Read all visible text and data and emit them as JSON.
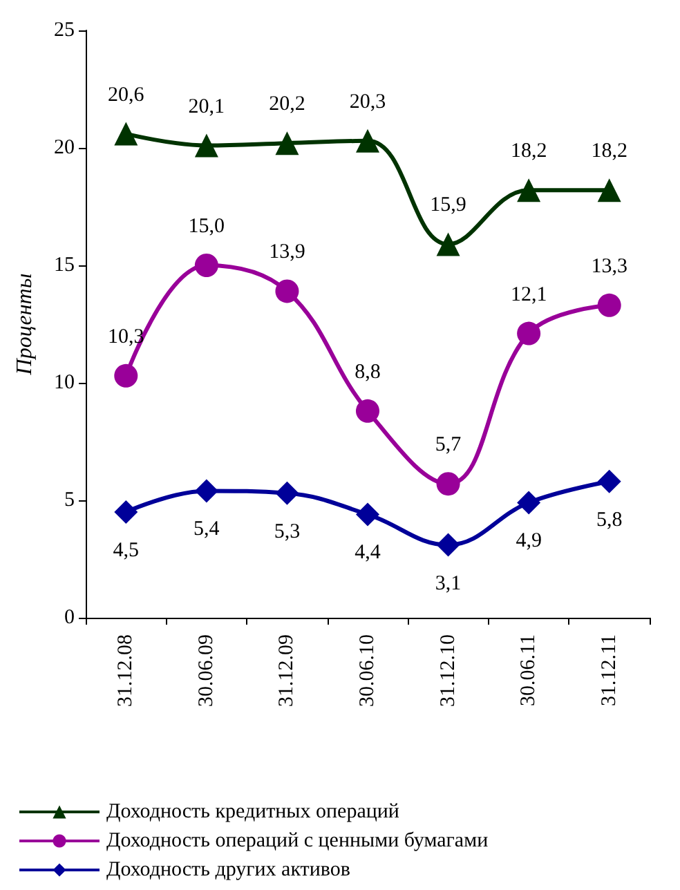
{
  "chart_data": {
    "type": "line",
    "ylabel": "Проценты",
    "categories": [
      "31.12.08",
      "30.06.09",
      "31.12.09",
      "30.06.10",
      "31.12.10",
      "30.06.11",
      "31.12.11"
    ],
    "series": [
      {
        "name": "Доходность кредитных операций",
        "color": "#003300",
        "marker": "triangle",
        "values": [
          20.6,
          20.1,
          20.2,
          20.3,
          15.9,
          18.2,
          18.2
        ],
        "value_labels": [
          "20,6",
          "20,1",
          "20,2",
          "20,3",
          "15,9",
          "18,2",
          "18,2"
        ]
      },
      {
        "name": "Доходность операций с ценными бумагами",
        "color": "#990099",
        "marker": "circle",
        "values": [
          10.3,
          15.0,
          13.9,
          8.8,
          5.7,
          12.1,
          13.3
        ],
        "value_labels": [
          "10,3",
          "15,0",
          "13,9",
          "8,8",
          "5,7",
          "12,1",
          "13,3"
        ]
      },
      {
        "name": "Доходность других активов",
        "color": "#000099",
        "marker": "diamond",
        "values": [
          4.5,
          5.4,
          5.3,
          4.4,
          3.1,
          4.9,
          5.8
        ],
        "value_labels": [
          "4,5",
          "5,4",
          "5,3",
          "4,4",
          "3,1",
          "4,9",
          "5,8"
        ]
      }
    ],
    "ylim": [
      0,
      25
    ],
    "yticks": [
      0,
      5,
      10,
      15,
      20,
      25
    ],
    "grid": false,
    "legend": "bottom",
    "line_style": "solid"
  }
}
